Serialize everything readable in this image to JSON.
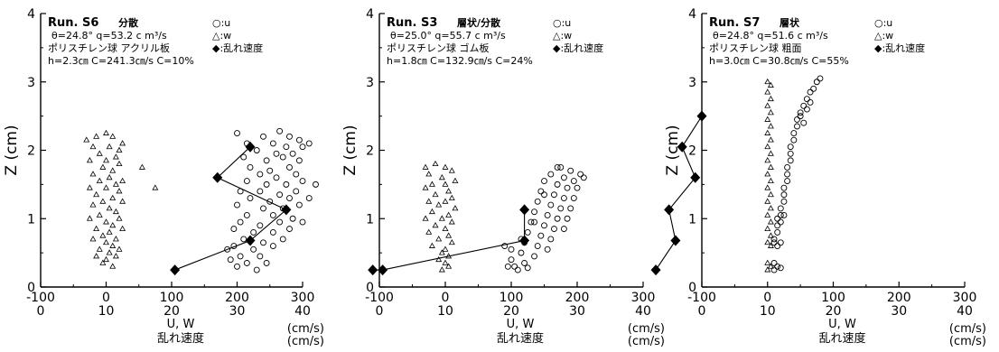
{
  "chart_data": [
    {
      "type": "scatter",
      "run": "Run. S6",
      "condition": "分散",
      "info_line1": "θ=24.8°  q=53.2 c m³/s",
      "info_line2": "ポリスチレン球 アクリル板",
      "info_line3": "h=2.3㎝ C=241.3㎝/s C=10%",
      "legend": [
        {
          "symbol": "circle",
          "label": "○:u"
        },
        {
          "symbol": "triangle",
          "label": "△:w"
        },
        {
          "symbol": "diamond",
          "label": "◆:乱れ速度"
        }
      ],
      "ylabel": "Z (cm)",
      "xlabel_main": "U, W",
      "xlabel_turb": "乱れ速度",
      "xunit1": "(cm/s)",
      "xunit2": "(cm/s)",
      "xlim": [
        -100,
        300
      ],
      "xlim_turb": [
        0,
        40
      ],
      "ylim": [
        0,
        4
      ],
      "xticks": [
        "-100",
        "0",
        "100",
        "200",
        "300"
      ],
      "xticks_turb": [
        "0",
        "10",
        "20",
        "30",
        "40"
      ],
      "yticks": [
        "0",
        "1",
        "2",
        "3",
        "4"
      ],
      "u_points": [
        [
          200,
          2.25
        ],
        [
          240,
          2.2
        ],
        [
          265,
          2.28
        ],
        [
          280,
          2.2
        ],
        [
          295,
          2.15
        ],
        [
          215,
          2.1
        ],
        [
          255,
          2.1
        ],
        [
          275,
          2.05
        ],
        [
          300,
          2.05
        ],
        [
          230,
          2.0
        ],
        [
          260,
          1.95
        ],
        [
          285,
          1.95
        ],
        [
          210,
          1.9
        ],
        [
          245,
          1.85
        ],
        [
          270,
          1.9
        ],
        [
          295,
          1.85
        ],
        [
          220,
          1.75
        ],
        [
          250,
          1.7
        ],
        [
          280,
          1.75
        ],
        [
          235,
          1.65
        ],
        [
          260,
          1.6
        ],
        [
          290,
          1.65
        ],
        [
          215,
          1.55
        ],
        [
          245,
          1.5
        ],
        [
          275,
          1.5
        ],
        [
          300,
          1.55
        ],
        [
          205,
          1.4
        ],
        [
          235,
          1.4
        ],
        [
          265,
          1.35
        ],
        [
          290,
          1.4
        ],
        [
          220,
          1.3
        ],
        [
          250,
          1.25
        ],
        [
          280,
          1.3
        ],
        [
          200,
          1.2
        ],
        [
          240,
          1.15
        ],
        [
          270,
          1.15
        ],
        [
          295,
          1.2
        ],
        [
          215,
          1.05
        ],
        [
          255,
          1.05
        ],
        [
          285,
          1.0
        ],
        [
          205,
          0.95
        ],
        [
          235,
          0.9
        ],
        [
          265,
          0.95
        ],
        [
          195,
          0.85
        ],
        [
          225,
          0.8
        ],
        [
          255,
          0.8
        ],
        [
          280,
          0.85
        ],
        [
          210,
          0.7
        ],
        [
          240,
          0.65
        ],
        [
          270,
          0.7
        ],
        [
          195,
          0.6
        ],
        [
          225,
          0.55
        ],
        [
          255,
          0.6
        ],
        [
          205,
          0.45
        ],
        [
          235,
          0.45
        ],
        [
          190,
          0.4
        ],
        [
          215,
          0.35
        ],
        [
          245,
          0.35
        ],
        [
          200,
          0.3
        ],
        [
          230,
          0.25
        ],
        [
          310,
          2.1
        ],
        [
          320,
          1.5
        ],
        [
          185,
          0.55
        ],
        [
          300,
          0.95
        ],
        [
          310,
          1.3
        ]
      ],
      "w_points": [
        [
          -30,
          2.15
        ],
        [
          -15,
          2.2
        ],
        [
          0,
          2.25
        ],
        [
          10,
          2.2
        ],
        [
          25,
          2.1
        ],
        [
          -20,
          2.05
        ],
        [
          5,
          2.05
        ],
        [
          20,
          2.0
        ],
        [
          -10,
          1.95
        ],
        [
          15,
          1.9
        ],
        [
          -25,
          1.85
        ],
        [
          0,
          1.85
        ],
        [
          20,
          1.8
        ],
        [
          -5,
          1.75
        ],
        [
          10,
          1.7
        ],
        [
          -20,
          1.65
        ],
        [
          5,
          1.6
        ],
        [
          25,
          1.55
        ],
        [
          -10,
          1.55
        ],
        [
          15,
          1.5
        ],
        [
          -25,
          1.45
        ],
        [
          0,
          1.45
        ],
        [
          20,
          1.4
        ],
        [
          -15,
          1.35
        ],
        [
          10,
          1.3
        ],
        [
          -5,
          1.25
        ],
        [
          25,
          1.25
        ],
        [
          -20,
          1.2
        ],
        [
          5,
          1.15
        ],
        [
          15,
          1.1
        ],
        [
          -10,
          1.05
        ],
        [
          20,
          1.0
        ],
        [
          -25,
          1.0
        ],
        [
          0,
          0.95
        ],
        [
          10,
          0.9
        ],
        [
          -15,
          0.85
        ],
        [
          25,
          0.85
        ],
        [
          5,
          0.8
        ],
        [
          -5,
          0.75
        ],
        [
          15,
          0.7
        ],
        [
          -20,
          0.7
        ],
        [
          0,
          0.65
        ],
        [
          10,
          0.6
        ],
        [
          -10,
          0.55
        ],
        [
          20,
          0.55
        ],
        [
          5,
          0.5
        ],
        [
          -15,
          0.45
        ],
        [
          15,
          0.45
        ],
        [
          0,
          0.4
        ],
        [
          -5,
          0.35
        ],
        [
          10,
          0.3
        ],
        [
          55,
          1.75
        ],
        [
          75,
          1.45
        ]
      ],
      "turb_series": [
        [
          32,
          2.05
        ],
        [
          27,
          1.6
        ],
        [
          37.5,
          1.13
        ],
        [
          32,
          0.68
        ],
        [
          20.5,
          0.25
        ]
      ]
    },
    {
      "type": "scatter",
      "run": "Run. S3",
      "condition": "層状/分散",
      "info_line1": "θ=25.0°  q=55.7 c m³/s",
      "info_line2": "ポリスチレン球 ゴム板",
      "info_line3": "h=1.8㎝ C=132.9㎝/s C=24%",
      "legend": [
        {
          "symbol": "circle",
          "label": "○:u"
        },
        {
          "symbol": "triangle",
          "label": "△:w"
        },
        {
          "symbol": "diamond",
          "label": "◆:乱れ速度"
        }
      ],
      "ylabel": "Z (cm)",
      "xlabel_main": "U, W",
      "xlabel_turb": "乱れ速度",
      "xunit1": "(cm/s)",
      "xunit2": "(cm/s)",
      "xlim": [
        -100,
        300
      ],
      "xlim_turb": [
        0,
        40
      ],
      "ylim": [
        0,
        4
      ],
      "xticks": [
        "-100",
        "0",
        "100",
        "200",
        "300"
      ],
      "xticks_turb": [
        "0",
        "10",
        "20",
        "30",
        "40"
      ],
      "yticks": [
        "0",
        "1",
        "2",
        "3",
        "4"
      ],
      "u_points": [
        [
          175,
          1.75
        ],
        [
          190,
          1.7
        ],
        [
          205,
          1.65
        ],
        [
          160,
          1.65
        ],
        [
          180,
          1.6
        ],
        [
          195,
          1.55
        ],
        [
          150,
          1.55
        ],
        [
          170,
          1.5
        ],
        [
          185,
          1.45
        ],
        [
          200,
          1.45
        ],
        [
          145,
          1.4
        ],
        [
          165,
          1.35
        ],
        [
          180,
          1.3
        ],
        [
          195,
          1.3
        ],
        [
          140,
          1.25
        ],
        [
          160,
          1.2
        ],
        [
          175,
          1.15
        ],
        [
          190,
          1.15
        ],
        [
          135,
          1.1
        ],
        [
          155,
          1.05
        ],
        [
          170,
          1.0
        ],
        [
          185,
          1.0
        ],
        [
          130,
          0.95
        ],
        [
          150,
          0.9
        ],
        [
          165,
          0.85
        ],
        [
          180,
          0.85
        ],
        [
          125,
          0.8
        ],
        [
          145,
          0.75
        ],
        [
          160,
          0.7
        ],
        [
          120,
          0.65
        ],
        [
          140,
          0.6
        ],
        [
          155,
          0.55
        ],
        [
          115,
          0.5
        ],
        [
          135,
          0.45
        ],
        [
          100,
          0.4
        ],
        [
          120,
          0.35
        ],
        [
          95,
          0.3
        ],
        [
          110,
          0.25
        ],
        [
          105,
          0.3
        ],
        [
          125,
          0.28
        ],
        [
          90,
          0.6
        ],
        [
          100,
          0.55
        ],
        [
          210,
          1.6
        ],
        [
          170,
          1.75
        ],
        [
          150,
          1.35
        ],
        [
          135,
          0.95
        ],
        [
          115,
          0.7
        ]
      ],
      "w_points": [
        [
          -30,
          1.75
        ],
        [
          -15,
          1.8
        ],
        [
          0,
          1.75
        ],
        [
          10,
          1.7
        ],
        [
          -25,
          1.65
        ],
        [
          -5,
          1.6
        ],
        [
          15,
          1.55
        ],
        [
          -20,
          1.5
        ],
        [
          0,
          1.5
        ],
        [
          -30,
          1.45
        ],
        [
          5,
          1.4
        ],
        [
          -15,
          1.35
        ],
        [
          10,
          1.3
        ],
        [
          -25,
          1.25
        ],
        [
          0,
          1.25
        ],
        [
          -10,
          1.2
        ],
        [
          15,
          1.15
        ],
        [
          -20,
          1.1
        ],
        [
          5,
          1.05
        ],
        [
          -30,
          1.0
        ],
        [
          -5,
          1.0
        ],
        [
          10,
          0.95
        ],
        [
          -15,
          0.9
        ],
        [
          0,
          0.85
        ],
        [
          -25,
          0.8
        ],
        [
          5,
          0.75
        ],
        [
          -10,
          0.7
        ],
        [
          10,
          0.65
        ],
        [
          -20,
          0.6
        ],
        [
          0,
          0.55
        ],
        [
          -5,
          0.5
        ],
        [
          5,
          0.45
        ],
        [
          -10,
          0.4
        ],
        [
          0,
          0.35
        ],
        [
          5,
          0.3
        ],
        [
          -5,
          0.25
        ]
      ],
      "turb_series": [
        [
          22,
          1.13
        ],
        [
          22,
          0.68
        ],
        [
          0.5,
          0.25
        ],
        [
          -1,
          0.25
        ]
      ]
    },
    {
      "type": "scatter",
      "run": "Run. S7",
      "condition": "層状",
      "info_line1": "θ=24.8°  q=51.6 c m³/s",
      "info_line2": "ポリスチレン球 粗面",
      "info_line3": "h=3.0㎝ C=30.8㎝/s C=55%",
      "legend": [
        {
          "symbol": "circle",
          "label": "○:u"
        },
        {
          "symbol": "triangle",
          "label": "△:w"
        },
        {
          "symbol": "diamond",
          "label": "◆:乱れ速度"
        }
      ],
      "ylabel": "Z (cm)",
      "xlabel_main": "U, W",
      "xlabel_turb": "乱れ速度",
      "xunit1": "(cm/s)",
      "xunit2": "(cm/s)",
      "xlim": [
        -100,
        300
      ],
      "xlim_turb": [
        0,
        40
      ],
      "ylim": [
        0,
        4
      ],
      "xticks": [
        "-100",
        "0",
        "100",
        "200",
        "300"
      ],
      "xticks_turb": [
        "0",
        "10",
        "20",
        "30",
        "40"
      ],
      "yticks": [
        "0",
        "1",
        "2",
        "3",
        "4"
      ],
      "u_points": [
        [
          80,
          3.05
        ],
        [
          75,
          3.0
        ],
        [
          70,
          2.9
        ],
        [
          65,
          2.85
        ],
        [
          60,
          2.75
        ],
        [
          55,
          2.65
        ],
        [
          50,
          2.55
        ],
        [
          45,
          2.45
        ],
        [
          45,
          2.35
        ],
        [
          40,
          2.25
        ],
        [
          40,
          2.15
        ],
        [
          35,
          2.05
        ],
        [
          35,
          1.95
        ],
        [
          35,
          1.85
        ],
        [
          30,
          1.75
        ],
        [
          30,
          1.65
        ],
        [
          30,
          1.55
        ],
        [
          25,
          1.45
        ],
        [
          25,
          1.35
        ],
        [
          25,
          1.25
        ],
        [
          20,
          1.15
        ],
        [
          20,
          1.05
        ],
        [
          15,
          1.0
        ],
        [
          15,
          0.9
        ],
        [
          15,
          0.8
        ],
        [
          10,
          0.7
        ],
        [
          10,
          0.65
        ],
        [
          20,
          0.65
        ],
        [
          15,
          0.6
        ],
        [
          10,
          0.35
        ],
        [
          15,
          0.3
        ],
        [
          10,
          0.25
        ],
        [
          20,
          0.28
        ],
        [
          50,
          2.5
        ],
        [
          60,
          2.6
        ],
        [
          65,
          2.7
        ],
        [
          55,
          2.4
        ],
        [
          25,
          1.05
        ],
        [
          20,
          0.95
        ]
      ],
      "w_points": [
        [
          0,
          3.0
        ],
        [
          5,
          2.95
        ],
        [
          0,
          2.85
        ],
        [
          5,
          2.75
        ],
        [
          0,
          2.65
        ],
        [
          5,
          2.55
        ],
        [
          0,
          2.45
        ],
        [
          5,
          2.35
        ],
        [
          0,
          2.25
        ],
        [
          5,
          2.15
        ],
        [
          0,
          2.05
        ],
        [
          5,
          1.95
        ],
        [
          0,
          1.85
        ],
        [
          5,
          1.75
        ],
        [
          0,
          1.65
        ],
        [
          5,
          1.55
        ],
        [
          0,
          1.45
        ],
        [
          5,
          1.35
        ],
        [
          0,
          1.25
        ],
        [
          5,
          1.15
        ],
        [
          0,
          1.05
        ],
        [
          5,
          0.95
        ],
        [
          0,
          0.85
        ],
        [
          5,
          0.75
        ],
        [
          0,
          0.65
        ],
        [
          5,
          0.6
        ],
        [
          0,
          0.35
        ],
        [
          5,
          0.3
        ],
        [
          0,
          0.25
        ]
      ],
      "turb_series": [
        [
          0,
          2.5
        ],
        [
          -3,
          2.05
        ],
        [
          -1,
          1.6
        ],
        [
          -5,
          1.13
        ],
        [
          -4,
          0.68
        ],
        [
          -7,
          0.25
        ]
      ]
    }
  ]
}
